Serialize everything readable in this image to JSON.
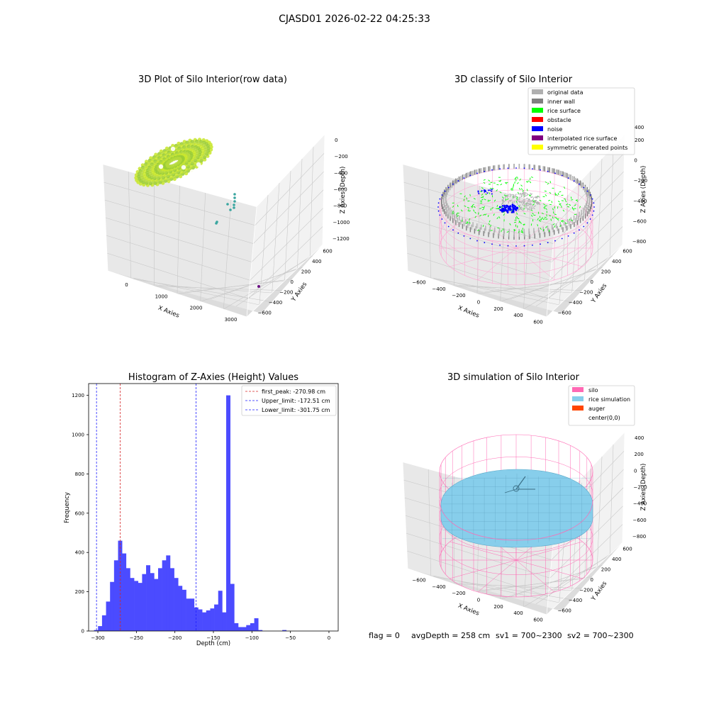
{
  "suptitle": "CJASD01 2026-02-22 04:25:33",
  "footer": {
    "flag": "flag = 0",
    "avg_depth": "avgDepth = 258 cm",
    "sv1": "sv1 = 700~2300",
    "sv2": "sv2 = 700~2300"
  },
  "colors": {
    "pane_light": "#f2f2f2",
    "pane_mid": "#e8e8e8",
    "pane_dark": "#dcdcdc",
    "grid": "#c8c8c8",
    "hist_bar": "#4b4bff",
    "first_peak_line": "#d62728",
    "limit_line": "#1f1fff",
    "silo": "#ff69b4",
    "rice_sim": "#87ceeb",
    "auger": "#ff4500",
    "rice_surface": "#00ff00",
    "noise": "#0000ff",
    "original": "#b0b0b0",
    "inner_wall": "#808080",
    "obstacle": "#ff0000",
    "interp": "#800080",
    "symmetric": "#ffff00",
    "raw_green": "#9acd32",
    "raw_teal": "#3aa6a0",
    "raw_purple": "#6a0d83"
  },
  "panels": {
    "raw": {
      "title": "3D Plot of Silo Interior(row data)",
      "xlabel": "X Axies",
      "ylabel": "Y Axies",
      "zlabel": "Z Axies (Depth)",
      "xticks": [
        "0",
        "1000",
        "2000",
        "3000"
      ],
      "yticks": [
        "600",
        "400",
        "200",
        "0",
        "−200",
        "−400",
        "−600"
      ],
      "zticks": [
        "0",
        "−200",
        "−400",
        "−600",
        "−800",
        "−1000",
        "−1200"
      ]
    },
    "classify": {
      "title": "3D classify of Silo Interior",
      "xlabel": "X Axies",
      "ylabel": "Y Axies",
      "zlabel": "Z Axies (Depth)",
      "xticks": [
        "−600",
        "−400",
        "−200",
        "0",
        "200",
        "400",
        "600"
      ],
      "yticks": [
        "600",
        "400",
        "200",
        "0",
        "−200",
        "−400",
        "−600"
      ],
      "zticks": [
        "200",
        "0",
        "−200",
        "−400",
        "−600",
        "−800"
      ],
      "zticks_hidden": [
        "400"
      ],
      "zticks_hidden_note": "topmost tick partly hidden behind legend",
      "legend": [
        {
          "label": "original data",
          "color": "#b0b0b0"
        },
        {
          "label": "inner wall",
          "color": "#808080"
        },
        {
          "label": "rice surface",
          "color": "#00ff00"
        },
        {
          "label": "obstacle",
          "color": "#ff0000"
        },
        {
          "label": "noise",
          "color": "#0000ff"
        },
        {
          "label": "interpolated rice surface",
          "color": "#800080"
        },
        {
          "label": "symmetric generated points",
          "color": "#ffff00"
        }
      ]
    },
    "simulation": {
      "title": "3D simulation of Silo Interior",
      "xlabel": "X Axies",
      "ylabel": "Y Axies",
      "zlabel": "Z Axies (Depth)",
      "xticks": [
        "−600",
        "−400",
        "−200",
        "0",
        "200",
        "400",
        "600"
      ],
      "yticks": [
        "600",
        "400",
        "200",
        "0",
        "−200",
        "−400",
        "−600"
      ],
      "zticks": [
        "400",
        "200",
        "0",
        "−200",
        "−400",
        "−600",
        "−800"
      ],
      "legend": [
        {
          "label": "silo",
          "color": "#ff69b4"
        },
        {
          "label": "rice simulation",
          "color": "#87ceeb"
        },
        {
          "label": "auger",
          "color": "#ff4500"
        },
        {
          "label": "center(0,0)",
          "color": ""
        }
      ]
    }
  },
  "chart_data": {
    "type": "bar",
    "title": "Histogram of Z-Axies (Height) Values",
    "xlabel": "Depth (cm)",
    "ylabel": "Frequency",
    "xlim": [
      -312,
      12
    ],
    "ylim": [
      0,
      1260
    ],
    "xticks": [
      -300,
      -250,
      -200,
      -150,
      -100,
      -50,
      0
    ],
    "yticks": [
      0,
      200,
      400,
      600,
      800,
      1000,
      1200
    ],
    "bin_width": 5.2,
    "bin_start": -305,
    "values": [
      5,
      25,
      80,
      150,
      250,
      360,
      460,
      395,
      320,
      270,
      255,
      245,
      290,
      335,
      295,
      265,
      320,
      360,
      385,
      320,
      270,
      230,
      210,
      165,
      165,
      120,
      110,
      95,
      105,
      115,
      135,
      205,
      95,
      1200,
      240,
      40,
      20,
      20,
      30,
      40,
      65,
      5,
      0,
      0,
      0,
      0,
      0,
      5,
      0
    ],
    "vlines": [
      {
        "label": "first_peak: -270.98 cm",
        "x": -270.98,
        "color": "#d62728"
      },
      {
        "label": "Upper_limit: -172.51 cm",
        "x": -172.51,
        "color": "#1f1fff"
      },
      {
        "label": "Lower_limit: -301.75 cm",
        "x": -301.75,
        "color": "#1f1fff"
      }
    ],
    "legend_position": "top-right",
    "grid": false
  }
}
